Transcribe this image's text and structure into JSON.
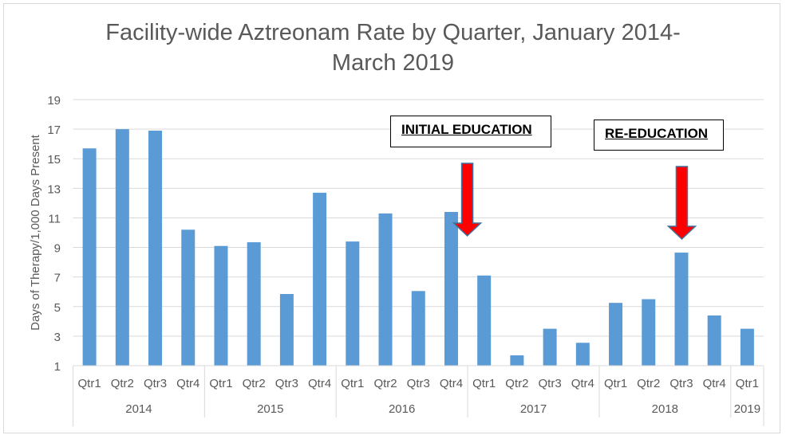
{
  "chart_data": {
    "type": "bar",
    "title_line1": "Facility-wide Aztreonam Rate by Quarter, January 2014-",
    "title_line2": "March 2019",
    "ylabel": "Days of Therapy/1,000 Days Present",
    "xlabel": "",
    "ylim": [
      1,
      19
    ],
    "yticks": [
      1,
      3,
      5,
      7,
      9,
      11,
      13,
      15,
      17,
      19
    ],
    "grid": true,
    "bar_color": "#5b9bd5",
    "years": [
      {
        "label": "2014",
        "quarters": [
          "Qtr1",
          "Qtr2",
          "Qtr3",
          "Qtr4"
        ]
      },
      {
        "label": "2015",
        "quarters": [
          "Qtr1",
          "Qtr2",
          "Qtr3",
          "Qtr4"
        ]
      },
      {
        "label": "2016",
        "quarters": [
          "Qtr1",
          "Qtr2",
          "Qtr3",
          "Qtr4"
        ]
      },
      {
        "label": "2017",
        "quarters": [
          "Qtr1",
          "Qtr2",
          "Qtr3",
          "Qtr4"
        ]
      },
      {
        "label": "2018",
        "quarters": [
          "Qtr1",
          "Qtr2",
          "Qtr3",
          "Qtr4"
        ]
      },
      {
        "label": "2019",
        "quarters": [
          "Qtr1"
        ]
      }
    ],
    "values": [
      15.7,
      17.0,
      16.9,
      10.2,
      9.1,
      9.35,
      5.85,
      12.7,
      9.4,
      11.3,
      6.05,
      11.4,
      7.1,
      1.7,
      3.5,
      2.55,
      5.25,
      5.5,
      8.65,
      4.4,
      3.5
    ],
    "annotations": [
      {
        "text": "INITIAL EDUCATION",
        "arrow_after_index": 11,
        "arrow_color": "#ff0000"
      },
      {
        "text": "RE-EDUCATION",
        "arrow_above_index": 18,
        "arrow_color": "#ff0000"
      }
    ]
  }
}
